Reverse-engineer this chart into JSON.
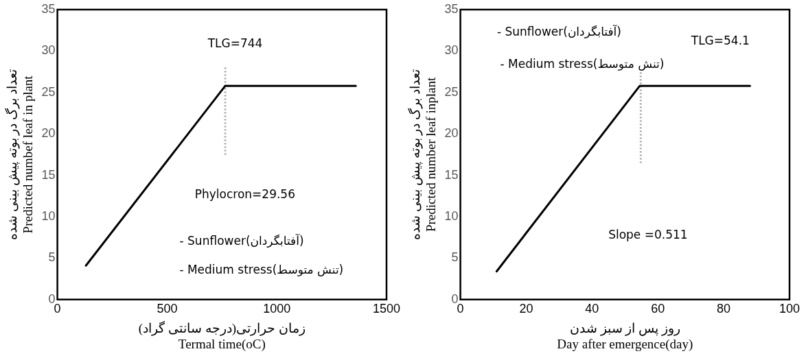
{
  "chart_data": [
    {
      "type": "line",
      "xlabel": "زمان حرارتی(درجه سانتی گراد)\nTermal time(oC)",
      "ylabel": "تعداد برگ در بوته پیش بینی شده\nPredicted numbef leaf in plant",
      "xlim": [
        0,
        1500
      ],
      "xticks": [
        0,
        500,
        1000,
        1500
      ],
      "ylim": [
        0,
        35
      ],
      "yticks": [
        0,
        5,
        10,
        15,
        20,
        25,
        30,
        35
      ],
      "grid": false,
      "legend": false,
      "marker": "none",
      "series": [
        {
          "color": "#000000",
          "x": [
            130,
            765,
            1360
          ],
          "values": [
            4.1,
            25.8,
            25.8
          ],
          "line_style": "solid"
        },
        {
          "color": "#a6a6a6",
          "x": [
            765,
            765
          ],
          "values": [
            17.5,
            28
          ],
          "line_style": "dotted"
        }
      ],
      "annotations": [
        "TLG=744",
        "Phylocron=29.56",
        "- Sunflower(آفتابگردان)",
        "- Medium stress(تنش متوسط)"
      ]
    },
    {
      "type": "line",
      "xlabel": "روز پس از سبز شدن\nDay after emergence(day)",
      "ylabel": "تعداد برگ در بوته پیش بینی شده\nPredicted number leaf inplant",
      "xlim": [
        0,
        100
      ],
      "xticks": [
        0,
        20,
        40,
        60,
        80,
        100
      ],
      "ylim": [
        0,
        35
      ],
      "yticks": [
        0,
        5,
        10,
        15,
        20,
        25,
        30,
        35
      ],
      "grid": false,
      "legend": false,
      "marker": "none",
      "series": [
        {
          "color": "#000000",
          "x": [
            11,
            54.5,
            88
          ],
          "values": [
            3.4,
            25.8,
            25.8
          ],
          "line_style": "solid"
        },
        {
          "color": "#a6a6a6",
          "x": [
            54.8,
            54.8
          ],
          "values": [
            16.5,
            27.5
          ],
          "line_style": "dotted"
        }
      ],
      "annotations": [
        "- Sunflower(آفتابگردان)",
        "- Medium stress(تنش متوسط)",
        "TLG=54.1",
        "Slope =0.511"
      ]
    }
  ]
}
